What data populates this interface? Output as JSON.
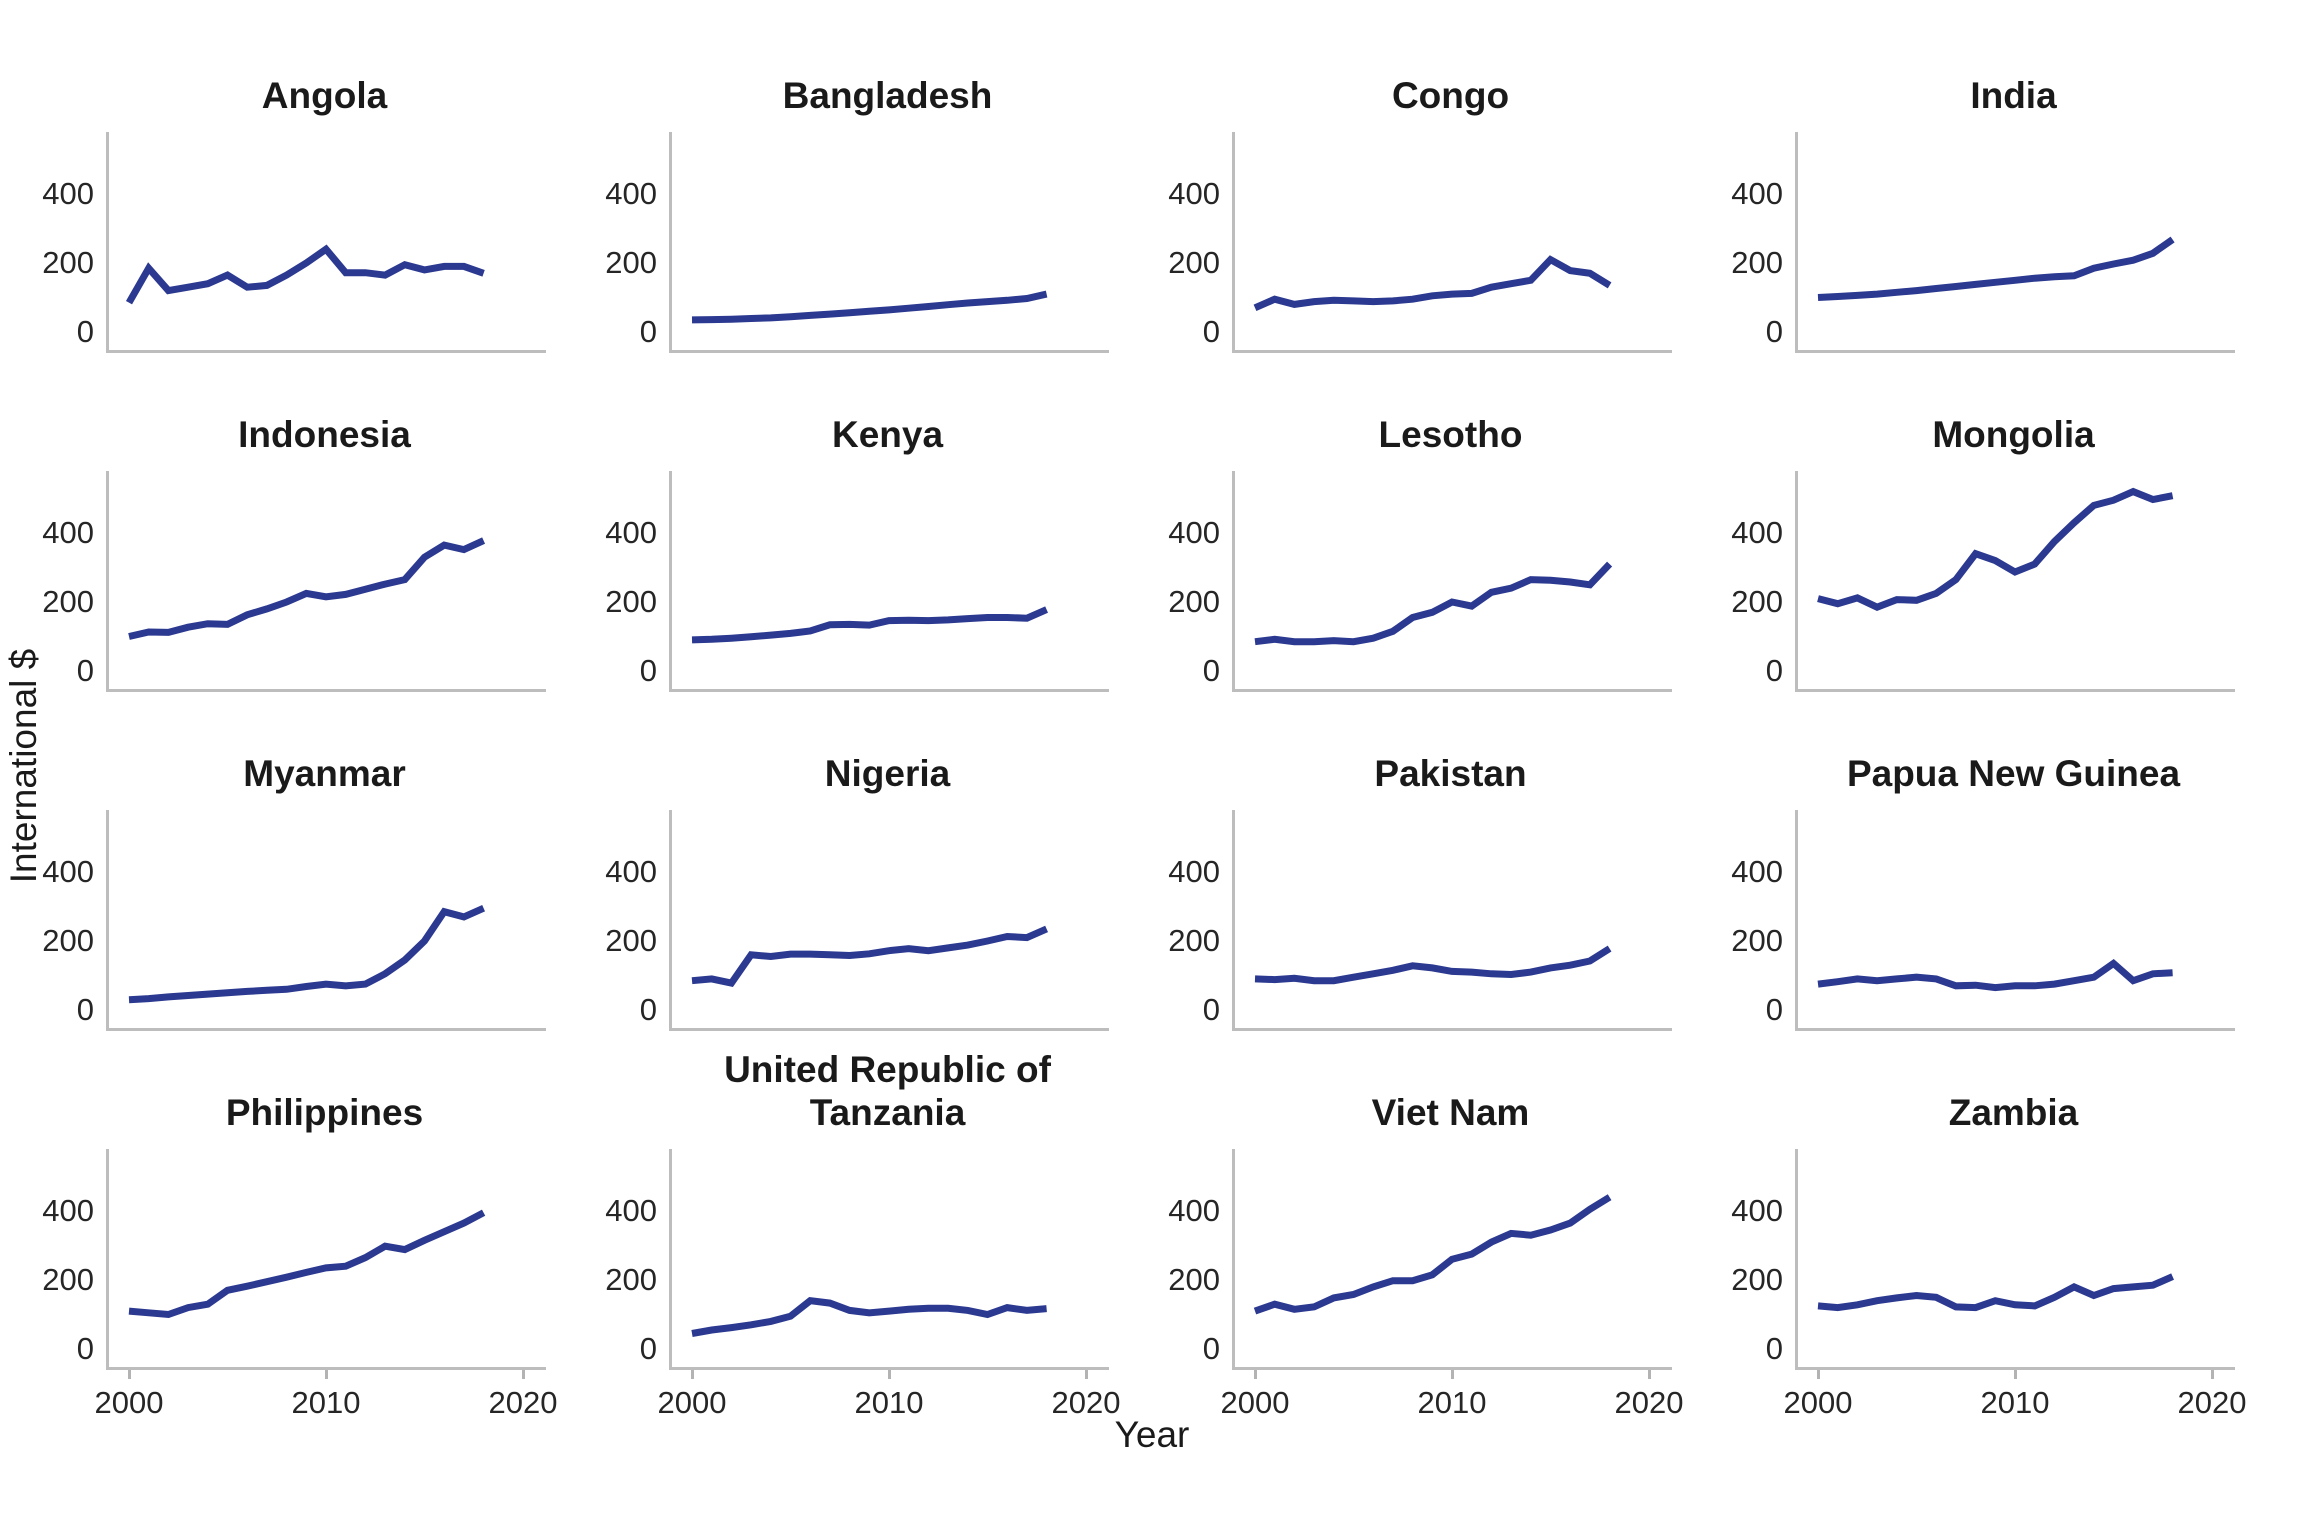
{
  "figure": {
    "ylabel": "International $",
    "xlabel": "Year",
    "yticks": [
      "0",
      "200",
      "400"
    ],
    "ytick_values": [
      0,
      200,
      400
    ],
    "xticks": [
      "2000",
      "2010",
      "2020"
    ],
    "xtick_values": [
      2000,
      2010,
      2020
    ],
    "line_color": "#2B3990",
    "spine_color": "#BDBDBD"
  },
  "chart_data": {
    "type": "line",
    "title": "",
    "xlabel": "Year",
    "ylabel": "International $",
    "xlim": [
      2000,
      2020
    ],
    "ylim": [
      0,
      580
    ],
    "grid": false,
    "legend": "none",
    "x": [
      2000,
      2001,
      2002,
      2003,
      2004,
      2005,
      2006,
      2007,
      2008,
      2009,
      2010,
      2011,
      2012,
      2013,
      2014,
      2015,
      2016,
      2017,
      2018
    ],
    "series": [
      {
        "name": "Angola",
        "values": [
          85,
          185,
          120,
          130,
          140,
          165,
          130,
          135,
          165,
          200,
          240,
          172,
          172,
          165,
          195,
          180,
          190,
          190,
          170
        ]
      },
      {
        "name": "Bangladesh",
        "values": [
          35,
          36,
          37,
          39,
          41,
          44,
          48,
          52,
          56,
          60,
          64,
          69,
          74,
          79,
          84,
          88,
          92,
          97,
          110
        ]
      },
      {
        "name": "Congo",
        "values": [
          70,
          95,
          80,
          88,
          92,
          90,
          88,
          90,
          95,
          105,
          110,
          112,
          130,
          140,
          150,
          210,
          178,
          170,
          135
        ]
      },
      {
        "name": "India",
        "values": [
          100,
          103,
          106,
          110,
          115,
          120,
          126,
          132,
          138,
          144,
          150,
          156,
          160,
          163,
          185,
          197,
          208,
          228,
          268
        ]
      },
      {
        "name": "Indonesia",
        "values": [
          100,
          113,
          112,
          127,
          137,
          135,
          163,
          180,
          200,
          225,
          215,
          222,
          237,
          252,
          265,
          330,
          365,
          352,
          378
        ]
      },
      {
        "name": "Kenya",
        "values": [
          90,
          92,
          95,
          99,
          104,
          109,
          116,
          134,
          135,
          133,
          146,
          147,
          146,
          148,
          152,
          155,
          155,
          153,
          178
        ]
      },
      {
        "name": "Lesotho",
        "values": [
          85,
          92,
          85,
          85,
          88,
          85,
          95,
          115,
          155,
          170,
          200,
          188,
          228,
          240,
          265,
          263,
          258,
          250,
          310
        ]
      },
      {
        "name": "Mongolia",
        "values": [
          210,
          195,
          212,
          185,
          207,
          205,
          225,
          265,
          340,
          320,
          287,
          310,
          375,
          430,
          480,
          495,
          520,
          497,
          508
        ]
      },
      {
        "name": "Myanmar",
        "values": [
          30,
          33,
          38,
          42,
          46,
          50,
          54,
          57,
          60,
          68,
          75,
          70,
          75,
          105,
          145,
          200,
          285,
          270,
          295
        ]
      },
      {
        "name": "Nigeria",
        "values": [
          85,
          90,
          78,
          160,
          155,
          162,
          162,
          160,
          158,
          163,
          172,
          178,
          172,
          180,
          188,
          200,
          213,
          210,
          235
        ]
      },
      {
        "name": "Pakistan",
        "values": [
          90,
          88,
          92,
          85,
          85,
          95,
          105,
          115,
          128,
          122,
          112,
          110,
          105,
          103,
          110,
          122,
          130,
          142,
          178
        ]
      },
      {
        "name": "Papua New Guinea",
        "values": [
          75,
          82,
          90,
          85,
          90,
          95,
          90,
          70,
          72,
          65,
          70,
          70,
          75,
          85,
          95,
          135,
          85,
          105,
          108
        ]
      },
      {
        "name": "Philippines",
        "values": [
          110,
          105,
          100,
          120,
          130,
          170,
          182,
          195,
          208,
          222,
          235,
          240,
          265,
          298,
          288,
          315,
          340,
          365,
          395
        ]
      },
      {
        "name": "United Republic of Tanzania",
        "values": [
          45,
          55,
          62,
          70,
          80,
          95,
          140,
          133,
          112,
          105,
          110,
          115,
          118,
          118,
          112,
          100,
          120,
          112,
          117
        ]
      },
      {
        "name": "Viet Nam",
        "values": [
          110,
          130,
          115,
          122,
          148,
          158,
          180,
          198,
          198,
          215,
          260,
          275,
          310,
          335,
          330,
          345,
          365,
          405,
          440
        ]
      },
      {
        "name": "Zambia",
        "values": [
          125,
          120,
          128,
          140,
          148,
          155,
          150,
          122,
          120,
          140,
          128,
          125,
          150,
          180,
          155,
          175,
          180,
          185,
          210
        ]
      }
    ]
  }
}
